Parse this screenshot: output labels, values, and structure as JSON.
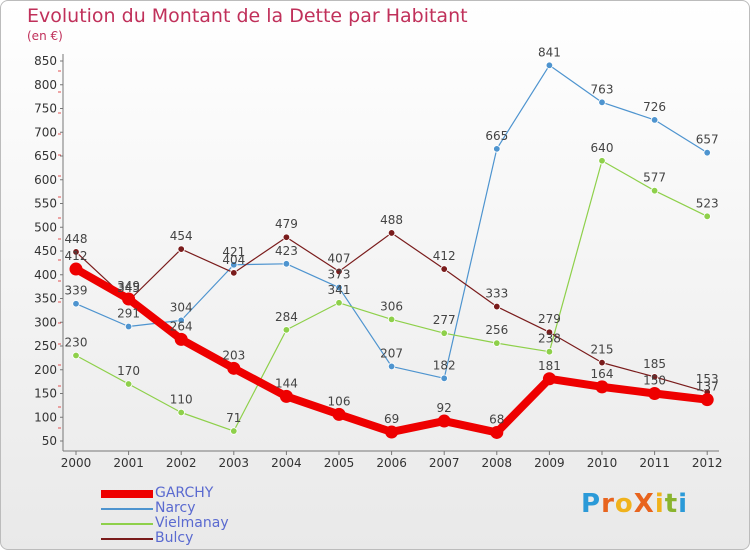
{
  "title": "Evolution du Montant de la Dette par Habitant",
  "subtitle": "(en €)",
  "logo": {
    "text": "ProXiti",
    "letters": [
      "P",
      "r",
      "o",
      "X",
      "i",
      "t",
      "i"
    ],
    "colors": [
      "#2b9ad8",
      "#e8641e",
      "#f0b21c",
      "#e8641e",
      "#f0b21c",
      "#8ab42e",
      "#2b9ad8"
    ]
  },
  "chart_data": {
    "type": "line",
    "x": [
      2000,
      2001,
      2002,
      2003,
      2004,
      2005,
      2006,
      2007,
      2008,
      2009,
      2010,
      2011,
      2012
    ],
    "xticklabels": [
      "2000",
      "2001",
      "2002",
      "2003",
      "2004",
      "2005",
      "2006",
      "2007",
      "2008",
      "2009",
      "2010",
      "2011",
      "2012"
    ],
    "ylim": [
      50,
      850
    ],
    "yticks": [
      50,
      100,
      150,
      200,
      250,
      300,
      350,
      400,
      450,
      500,
      550,
      600,
      650,
      700,
      750,
      800,
      850
    ],
    "yticklabels": [
      "50",
      "100",
      "150",
      "200",
      "250",
      "300",
      "350",
      "400",
      "450",
      "500",
      "550",
      "600",
      "650",
      "700",
      "750",
      "800",
      "850"
    ],
    "grid": false,
    "legend_position": "bottom-left",
    "series": [
      {
        "name": "GARCHY",
        "color": "#ee0000",
        "line_style": "thick",
        "values": [
          412,
          349,
          264,
          203,
          144,
          106,
          69,
          92,
          68,
          181,
          164,
          150,
          137
        ],
        "labels": [
          "412",
          "349",
          "264",
          "203",
          "144",
          "106",
          "69",
          "92",
          "68",
          "181",
          "164",
          "150",
          "137"
        ]
      },
      {
        "name": "Narcy",
        "color": "#4e94cf",
        "line_style": "thin",
        "values": [
          339,
          291,
          304,
          421,
          423,
          373,
          207,
          182,
          665,
          841,
          763,
          726,
          657
        ],
        "labels": [
          "339",
          "291",
          "304",
          "421",
          "423",
          "373",
          "207",
          "182",
          "665",
          "841",
          "763",
          "726",
          "657"
        ]
      },
      {
        "name": "Vielmanay",
        "color": "#8ed04a",
        "line_style": "thin",
        "values": [
          230,
          170,
          110,
          71,
          284,
          341,
          306,
          277,
          256,
          238,
          640,
          577,
          523
        ],
        "labels": [
          "230",
          "170",
          "110",
          "71",
          "284",
          "341",
          "306",
          "277",
          "256",
          "238",
          "640",
          "577",
          "523"
        ]
      },
      {
        "name": "Bulcy",
        "color": "#7a1c1c",
        "line_style": "thin",
        "values": [
          448,
          345,
          454,
          404,
          479,
          407,
          488,
          412,
          333,
          279,
          215,
          185,
          153
        ],
        "labels": [
          "448",
          "345",
          "454",
          "404",
          "479",
          "407",
          "488",
          "412",
          "333",
          "279",
          "215",
          "185",
          "153"
        ]
      }
    ]
  }
}
